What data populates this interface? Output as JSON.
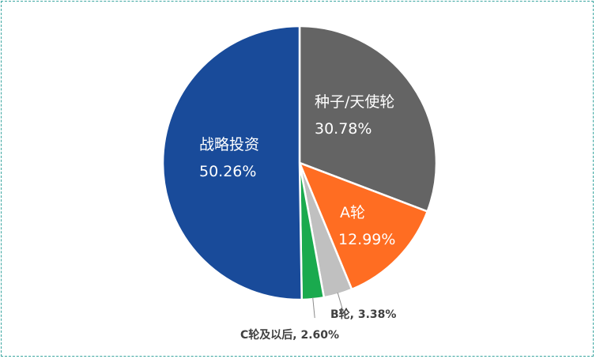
{
  "chart_data": {
    "type": "pie",
    "title": "",
    "slices": [
      {
        "name": "种子/天使轮",
        "value": 30.78,
        "label_value": "30.78%",
        "color": "#646464"
      },
      {
        "name": "A轮",
        "value": 12.99,
        "label_value": "12.99%",
        "color": "#ff6d22"
      },
      {
        "name": "B轮",
        "value": 3.38,
        "label_value": "3.38%",
        "color": "#c0c0c0"
      },
      {
        "name": "C轮及以后",
        "value": 2.6,
        "label_value": "2.60%",
        "color": "#1aaa4e"
      },
      {
        "name": "战略投资",
        "value": 50.26,
        "label_value": "50.26%",
        "color": "#194b9a"
      }
    ],
    "outside_labels": {
      "B轮": "B轮, 3.38%",
      "C轮及以后": "C轮及以后, 2.60%"
    },
    "legend": "none",
    "start_angle": "12 o'clock",
    "direction": "clockwise"
  }
}
